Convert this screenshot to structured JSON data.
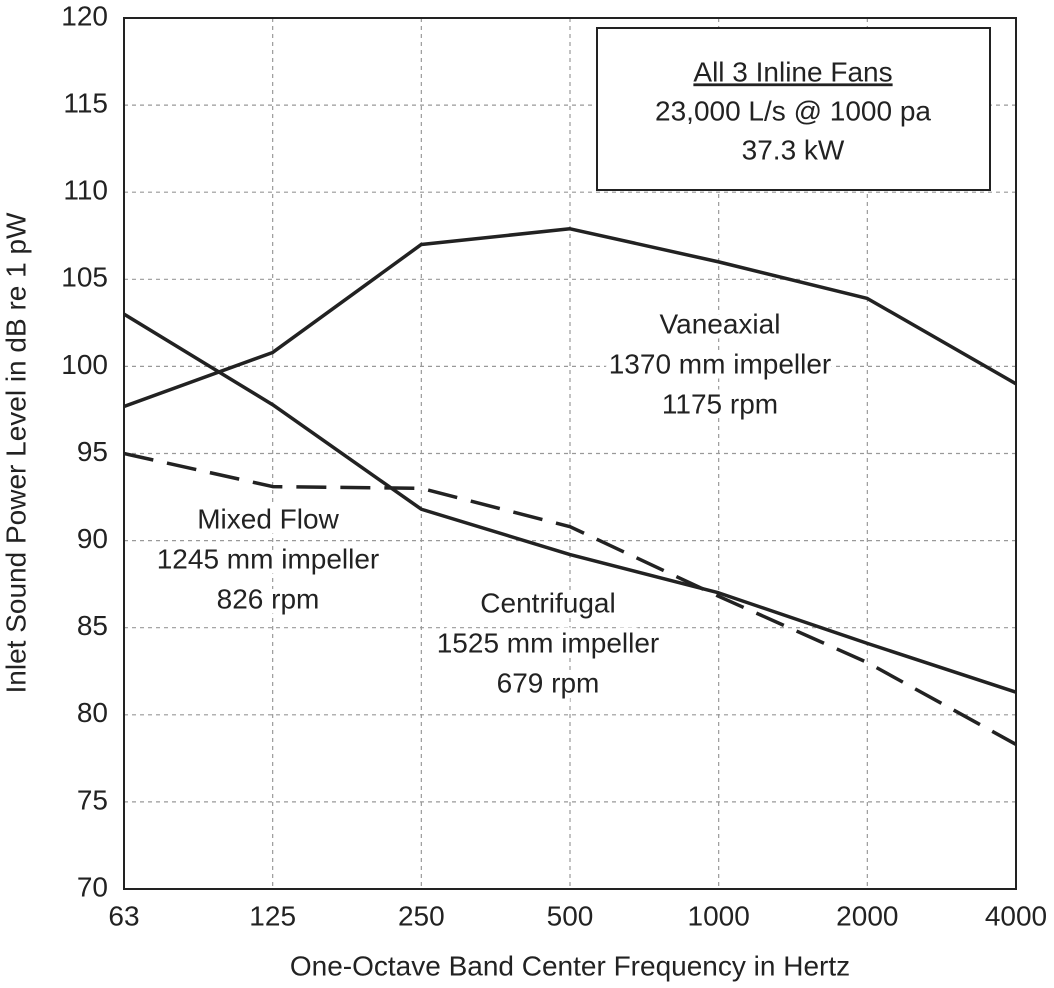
{
  "chart_data": {
    "type": "line",
    "x_label": "One-Octave Band Center Frequency in Hertz",
    "y_label": "Inlet Sound Power Level in dB re 1 pW",
    "categories": [
      "63",
      "125",
      "250",
      "500",
      "1000",
      "2000",
      "4000"
    ],
    "ylim": [
      70,
      120
    ],
    "yticks": [
      70,
      75,
      80,
      85,
      90,
      95,
      100,
      105,
      110,
      115,
      120
    ],
    "grid": true,
    "box_annotation": [
      "All 3 Inline Fans",
      "23,000 L/s @ 1000 pa",
      "37.3 kW"
    ],
    "series": [
      {
        "name": "Vaneaxial",
        "details": [
          "1370 mm impeller",
          "1175 rpm"
        ],
        "color": "#222222",
        "style": "solid",
        "values": [
          97.7,
          100.8,
          107,
          107.9,
          106,
          103.9,
          99
        ]
      },
      {
        "name": "Centrifugal",
        "details": [
          "1525 mm impeller",
          "679 rpm"
        ],
        "color": "#222222",
        "style": "solid",
        "values": [
          103,
          97.8,
          91.8,
          89.2,
          87,
          84.1,
          81.3
        ]
      },
      {
        "name": "Mixed Flow",
        "details": [
          "1245 mm impeller",
          "826 rpm"
        ],
        "color": "#222222",
        "style": "dashed",
        "values": [
          95,
          93.1,
          93,
          90.8,
          86.8,
          83,
          78.3
        ]
      }
    ]
  }
}
